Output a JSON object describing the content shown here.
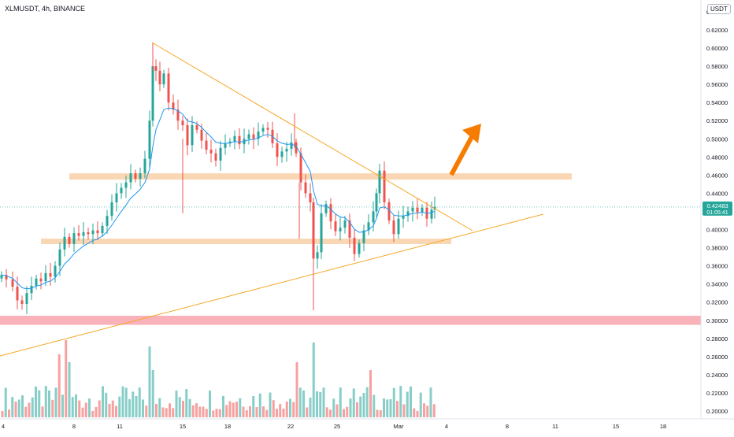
{
  "header": {
    "symbol_line": "XLMUSDT, 4h, BINANCE",
    "currency": "USDT"
  },
  "colors": {
    "bull": "#26a69a",
    "bear": "#ef5350",
    "ma": "#2196f3",
    "trendline": "#f5a623",
    "resistance_zone": "#f8c99b",
    "support_zone": "#f8c99b",
    "red_zone": "#f8a5ad",
    "arrow": "#f57c00",
    "price_tag": "#26a69a"
  },
  "chart_data": {
    "type": "candlestick",
    "symbol": "XLMUSDT",
    "timeframe": "4h",
    "exchange": "BINANCE",
    "y_axis": {
      "ylim": [
        0.196,
        0.6495
      ],
      "ticks": [
        "0.64000",
        "0.62000",
        "0.60000",
        "0.58000",
        "0.56000",
        "0.54000",
        "0.52000",
        "0.50000",
        "0.48000",
        "0.46000",
        "0.44000",
        "0.42000",
        "0.40000",
        "0.38000",
        "0.36000",
        "0.34000",
        "0.32000",
        "0.30000",
        "0.28000",
        "0.26000",
        "0.24000",
        "0.22000",
        "0.20000"
      ]
    },
    "x_axis": {
      "ticks": [
        "4",
        "8",
        "11",
        "15",
        "18",
        "22",
        "25",
        "Mar",
        "4",
        "8",
        "11",
        "15",
        "18"
      ]
    },
    "current_price": {
      "value": "0.42483",
      "countdown": "01:05:41"
    },
    "candles_summary": {
      "start_price": 0.35,
      "swing_low_1": 0.317,
      "peak_high": 0.606,
      "consolidation": 0.5,
      "swing_low_2": 0.311,
      "rebound_high": 0.47,
      "last_close": 0.425
    },
    "zones": [
      {
        "name": "resistance",
        "top": 0.462,
        "bottom": 0.455
      },
      {
        "name": "support",
        "top": 0.39,
        "bottom": 0.384
      },
      {
        "name": "red",
        "top": 0.305,
        "bottom": 0.295
      }
    ],
    "trendlines": [
      {
        "name": "descending",
        "from": {
          "date": "13",
          "price": 0.607
        },
        "to": {
          "date": "Mar 5",
          "price": 0.4
        }
      },
      {
        "name": "ascending",
        "from": {
          "date": "1",
          "price": 0.262
        },
        "to": {
          "date": "10",
          "price": 0.418
        }
      }
    ]
  }
}
